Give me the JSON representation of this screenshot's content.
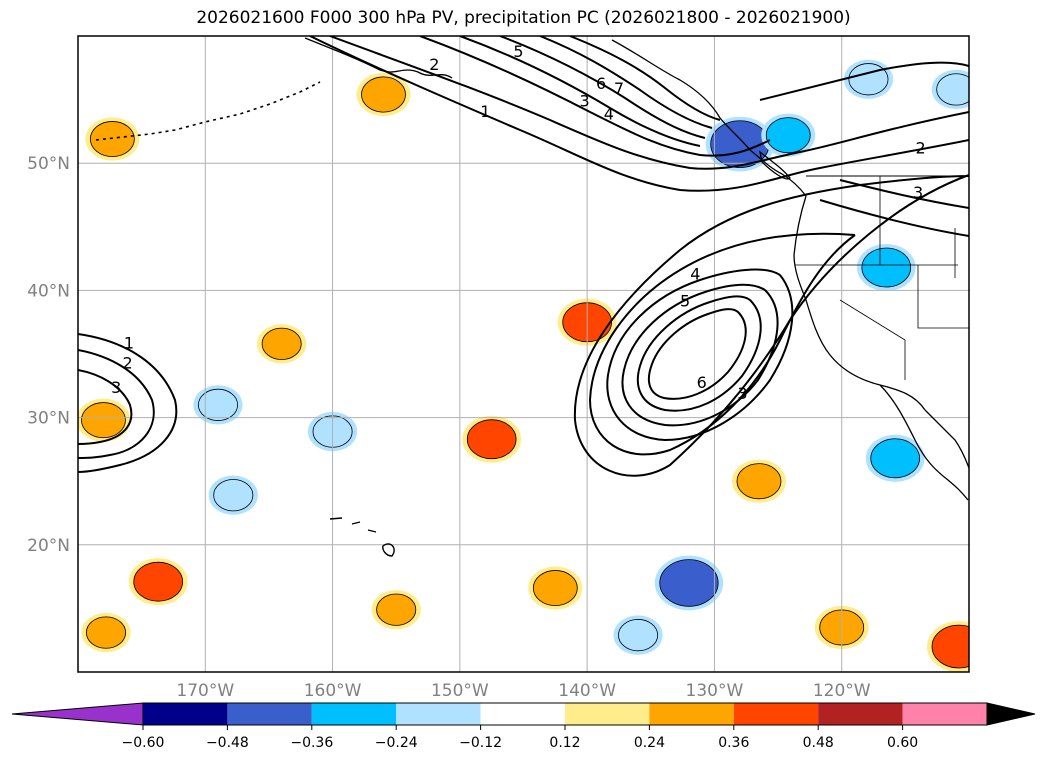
{
  "title": "2026021600 F000 300 hPa PV, precipitation PC (2026021800 - 2026021900)",
  "map": {
    "lon_range": [
      -180,
      -110
    ],
    "lat_range": [
      10,
      60
    ],
    "lon_ticks": [
      {
        "value": -170,
        "label": "170°W"
      },
      {
        "value": -160,
        "label": "160°W"
      },
      {
        "value": -150,
        "label": "150°W"
      },
      {
        "value": -140,
        "label": "140°W"
      },
      {
        "value": -130,
        "label": "130°W"
      },
      {
        "value": -120,
        "label": "120°W"
      }
    ],
    "lat_ticks": [
      {
        "value": 50,
        "label": "50°N"
      },
      {
        "value": 40,
        "label": "40°N"
      },
      {
        "value": 30,
        "label": "30°N"
      },
      {
        "value": 20,
        "label": "20°N"
      }
    ],
    "grid": true,
    "pv_contour_labels": [
      {
        "text": "1",
        "lon": -148,
        "lat": 54
      },
      {
        "text": "2",
        "lon": -152,
        "lat": 57.7
      },
      {
        "text": "3",
        "lon": -140.2,
        "lat": 54.8
      },
      {
        "text": "4",
        "lon": -138.3,
        "lat": 53.8
      },
      {
        "text": "5",
        "lon": -145.4,
        "lat": 58.7
      },
      {
        "text": "6",
        "lon": -138.9,
        "lat": 56.2
      },
      {
        "text": "7",
        "lon": -137.5,
        "lat": 55.8
      },
      {
        "text": "2",
        "lon": -113.8,
        "lat": 51.1
      },
      {
        "text": "3",
        "lon": -114,
        "lat": 47.6
      },
      {
        "text": "4",
        "lon": -131.5,
        "lat": 41.2
      },
      {
        "text": "5",
        "lon": -132.3,
        "lat": 39.1
      },
      {
        "text": "6",
        "lon": -131,
        "lat": 32.7
      },
      {
        "text": "3",
        "lon": -127.8,
        "lat": 31.8
      },
      {
        "text": "1",
        "lon": -176,
        "lat": 35.8
      },
      {
        "text": "2",
        "lon": -176.1,
        "lat": 34.2
      },
      {
        "text": "3",
        "lon": -177,
        "lat": 32.3
      }
    ],
    "precip_blobs": [
      {
        "lon": -140,
        "lat": 37.5,
        "value": 0.36
      },
      {
        "lon": -147.5,
        "lat": 28.3,
        "value": 0.36
      },
      {
        "lon": -126.5,
        "lat": 25,
        "value": 0.3
      },
      {
        "lon": -132,
        "lat": 17,
        "value": -0.48
      },
      {
        "lon": -128,
        "lat": 51.5,
        "value": -0.48
      },
      {
        "lon": -124.2,
        "lat": 52.2,
        "value": -0.3
      },
      {
        "lon": -116.5,
        "lat": 41.8,
        "value": -0.36
      },
      {
        "lon": -115.8,
        "lat": 26.8,
        "value": -0.36
      },
      {
        "lon": -110.8,
        "lat": 12,
        "value": 0.42
      },
      {
        "lon": -120,
        "lat": 13.5,
        "value": 0.3
      },
      {
        "lon": -142.5,
        "lat": 16.6,
        "value": 0.3
      },
      {
        "lon": -156,
        "lat": 55.4,
        "value": 0.3
      },
      {
        "lon": -177.3,
        "lat": 51.9,
        "value": 0.3
      },
      {
        "lon": -173.7,
        "lat": 17.1,
        "value": 0.36
      },
      {
        "lon": -178,
        "lat": 29.8,
        "value": 0.3
      },
      {
        "lon": -177.8,
        "lat": 13.1,
        "value": 0.24
      },
      {
        "lon": -155,
        "lat": 14.9,
        "value": 0.24
      },
      {
        "lon": -164,
        "lat": 35.8,
        "value": 0.24
      },
      {
        "lon": -169,
        "lat": 31,
        "value": -0.24
      },
      {
        "lon": -160,
        "lat": 28.9,
        "value": -0.24
      },
      {
        "lon": -167.8,
        "lat": 23.9,
        "value": -0.24
      },
      {
        "lon": -136,
        "lat": 12.9,
        "value": -0.24
      },
      {
        "lon": -111,
        "lat": 55.8,
        "value": -0.24
      },
      {
        "lon": -117.9,
        "lat": 56.6,
        "value": -0.24
      }
    ]
  },
  "colorbar": {
    "labels": [
      "−0.60",
      "−0.48",
      "−0.36",
      "−0.24",
      "−0.12",
      "0.12",
      "0.24",
      "0.36",
      "0.48",
      "0.60"
    ],
    "colors": [
      "#9932cc",
      "#00008b",
      "#3a5fcd",
      "#00bfff",
      "#b0e2ff",
      "#ffffff",
      "#ffec8b",
      "#ffa500",
      "#ff4500",
      "#b22222",
      "#ff82ab"
    ]
  }
}
